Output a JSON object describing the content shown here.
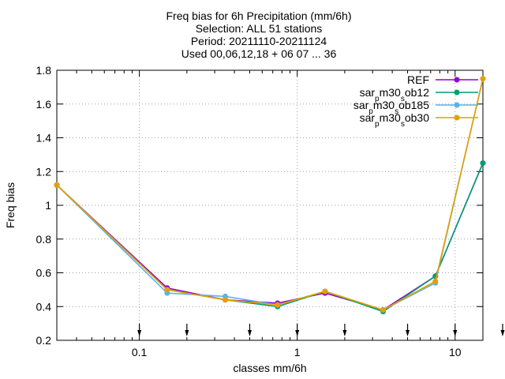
{
  "chart_data": {
    "type": "line",
    "title_lines": [
      "Freq bias  for 6h Precipitation (mm/6h)",
      "Selection: ALL     51 stations",
      "Period: 20211110-20211124",
      "Used 00,06,12,18 + 06 07 ... 36"
    ],
    "xlabel": "classes mm/6h",
    "ylabel": "Freq bias",
    "xscale": "log",
    "xlim": [
      0.03,
      15
    ],
    "ylim": [
      0.2,
      1.8
    ],
    "xticks": [
      {
        "value": 0.1,
        "label": "0.1"
      },
      {
        "value": 1,
        "label": "1"
      },
      {
        "value": 10,
        "label": "10"
      }
    ],
    "yticks": [
      {
        "value": 0.2,
        "label": "0.2"
      },
      {
        "value": 0.4,
        "label": "0.4"
      },
      {
        "value": 0.6,
        "label": "0.6"
      },
      {
        "value": 0.8,
        "label": "0.8"
      },
      {
        "value": 1,
        "label": "1"
      },
      {
        "value": 1.2,
        "label": "1.2"
      },
      {
        "value": 1.4,
        "label": "1.4"
      },
      {
        "value": 1.6,
        "label": "1.6"
      },
      {
        "value": 1.8,
        "label": "1.8"
      }
    ],
    "class_limit_arrows": [
      0.1,
      0.2,
      0.5,
      1,
      2,
      5,
      10,
      20
    ],
    "grid": true,
    "legend_position": "top-right",
    "x": [
      0.03,
      0.15,
      0.35,
      0.75,
      1.5,
      3.5,
      7.5,
      15
    ],
    "series": [
      {
        "name_base": "REF",
        "name_sub": "",
        "name_tail": "",
        "color": "#9400d3",
        "values": [
          1.12,
          0.51,
          0.44,
          0.42,
          0.48,
          0.38,
          0.58,
          1.25
        ]
      },
      {
        "name_base": "sar",
        "name_sub": "p",
        "name_mid": "m30",
        "name_sub2": "s",
        "name_tail": "ob12",
        "color": "#009e73",
        "values": [
          1.12,
          0.5,
          0.44,
          0.4,
          0.49,
          0.37,
          0.58,
          1.25
        ]
      },
      {
        "name_base": "sar",
        "name_sub": "p",
        "name_mid": "m30",
        "name_sub2": "s",
        "name_tail": "ob185",
        "color": "#56b4e9",
        "values": [
          1.12,
          0.48,
          0.46,
          0.41,
          0.49,
          0.38,
          0.54,
          1.75
        ]
      },
      {
        "name_base": "sar",
        "name_sub": "p",
        "name_mid": "m30",
        "name_sub2": "s",
        "name_tail": "ob30",
        "color": "#e69f00",
        "values": [
          1.12,
          0.5,
          0.44,
          0.41,
          0.49,
          0.38,
          0.55,
          1.75
        ]
      }
    ]
  }
}
